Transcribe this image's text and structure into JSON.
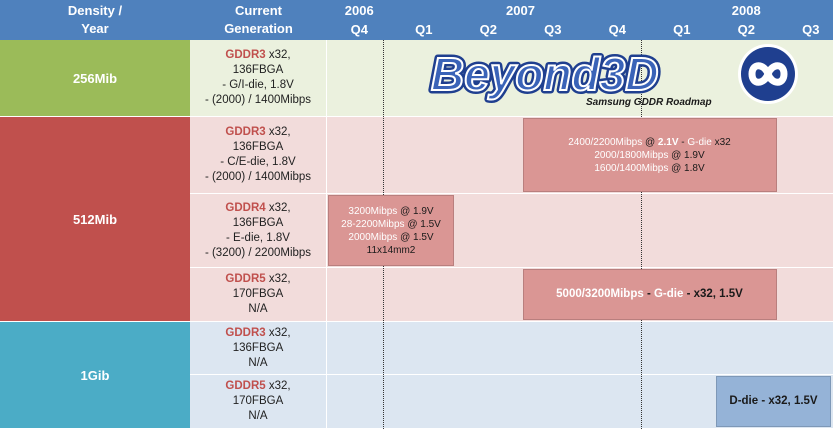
{
  "header": {
    "density_line1": "Density /",
    "density_line2": "Year",
    "generation_line1": "Current",
    "generation_line2": "Generation"
  },
  "chart_data": {
    "type": "table",
    "years": [
      "2006",
      "2007",
      "2008"
    ],
    "quarters": [
      "Q4",
      "Q1",
      "Q2",
      "Q3",
      "Q4",
      "Q1",
      "Q2",
      "Q3"
    ],
    "densities": [
      {
        "label": "256Mib",
        "color": "#9bbb59",
        "rows": [
          {
            "type": "GDDR3",
            "width": "x32,",
            "package": "136FBGA",
            "die": "- G/I-die, 1.8V",
            "speed": "- (2000) / 1400Mibps"
          }
        ]
      },
      {
        "label": "512Mib",
        "color": "#c0504d",
        "rows": [
          {
            "type": "GDDR3",
            "width": "x32,",
            "package": "136FBGA",
            "die": "- C/E-die, 1.8V",
            "speed": "- (2000) / 1400Mibps"
          },
          {
            "type": "GDDR4",
            "width": "x32,",
            "package": "136FBGA",
            "die": "- E-die, 1.8V",
            "speed": "- (3200) / 2200Mibps"
          },
          {
            "type": "GDDR5",
            "width": "x32,",
            "package": "170FBGA",
            "die": "N/A",
            "speed": ""
          }
        ]
      },
      {
        "label": "1Gib",
        "color": "#4bacc6",
        "rows": [
          {
            "type": "GDDR3",
            "width": "x32,",
            "package": "136FBGA",
            "die": "N/A",
            "speed": ""
          },
          {
            "type": "GDDR5",
            "width": "x32,",
            "package": "170FBGA",
            "die": "N/A",
            "speed": ""
          }
        ]
      }
    ],
    "bars": [
      {
        "density": "512Mib",
        "row": "GDDR3",
        "start": "2007 Q3",
        "end": "2008 Q2",
        "lines": [
          [
            {
              "t": "2400/2200Mibps",
              "s": "hl"
            },
            {
              "t": " @ ",
              "s": ""
            },
            {
              "t": "2.1V",
              "s": "hlb"
            },
            {
              "t": " - ",
              "s": ""
            },
            {
              "t": "G-die",
              "s": "hl"
            },
            {
              "t": " x32",
              "s": ""
            }
          ],
          [
            {
              "t": "2000/1800Mibps",
              "s": "hl"
            },
            {
              "t": " @ 1.9V",
              "s": ""
            }
          ],
          [
            {
              "t": "1600/1400Mibps",
              "s": "hl"
            },
            {
              "t": " @ 1.8V",
              "s": ""
            }
          ]
        ]
      },
      {
        "density": "512Mib",
        "row": "GDDR4",
        "start": "2006 Q4",
        "end": "2007 Q1",
        "lines": [
          [
            {
              "t": "3200Mibps",
              "s": "hl"
            },
            {
              "t": " @ 1.9V",
              "s": ""
            }
          ],
          [
            {
              "t": "28-2200Mibps",
              "s": "hl"
            },
            {
              "t": " @ 1.5V",
              "s": ""
            }
          ],
          [
            {
              "t": "2000Mibps",
              "s": "hl"
            },
            {
              "t": " @ 1.5V",
              "s": ""
            }
          ],
          [
            {
              "t": "11x14mm2",
              "s": ""
            }
          ]
        ]
      },
      {
        "density": "512Mib",
        "row": "GDDR5",
        "start": "2007 Q3",
        "end": "2008 Q2",
        "lines": [
          [
            {
              "t": "5000/3200Mibps",
              "s": "hlb"
            },
            {
              "t": " - ",
              "s": "b"
            },
            {
              "t": "G-die",
              "s": "hlb"
            },
            {
              "t": " - x32, 1.5V",
              "s": "b"
            }
          ]
        ]
      },
      {
        "density": "1Gib",
        "row": "GDDR5",
        "start": "2008 Q2",
        "end": "2008 Q3",
        "lines": [
          [
            {
              "t": "D-die - x32, 1.5V",
              "s": "b"
            }
          ]
        ]
      }
    ]
  },
  "logo": {
    "text": "Beyond3D",
    "tagline": "Samsung GDDR Roadmap"
  },
  "colors": {
    "header": "#4f81bd",
    "density_256": "#9bbb59",
    "density_512": "#c0504d",
    "density_1g": "#4bacc6",
    "bg_256": "#ebf1de",
    "bg_512": "#f2dcdb",
    "bg_1g": "#dce6f1",
    "bar_512": "#da9694",
    "bar_1g": "#95b3d7"
  }
}
